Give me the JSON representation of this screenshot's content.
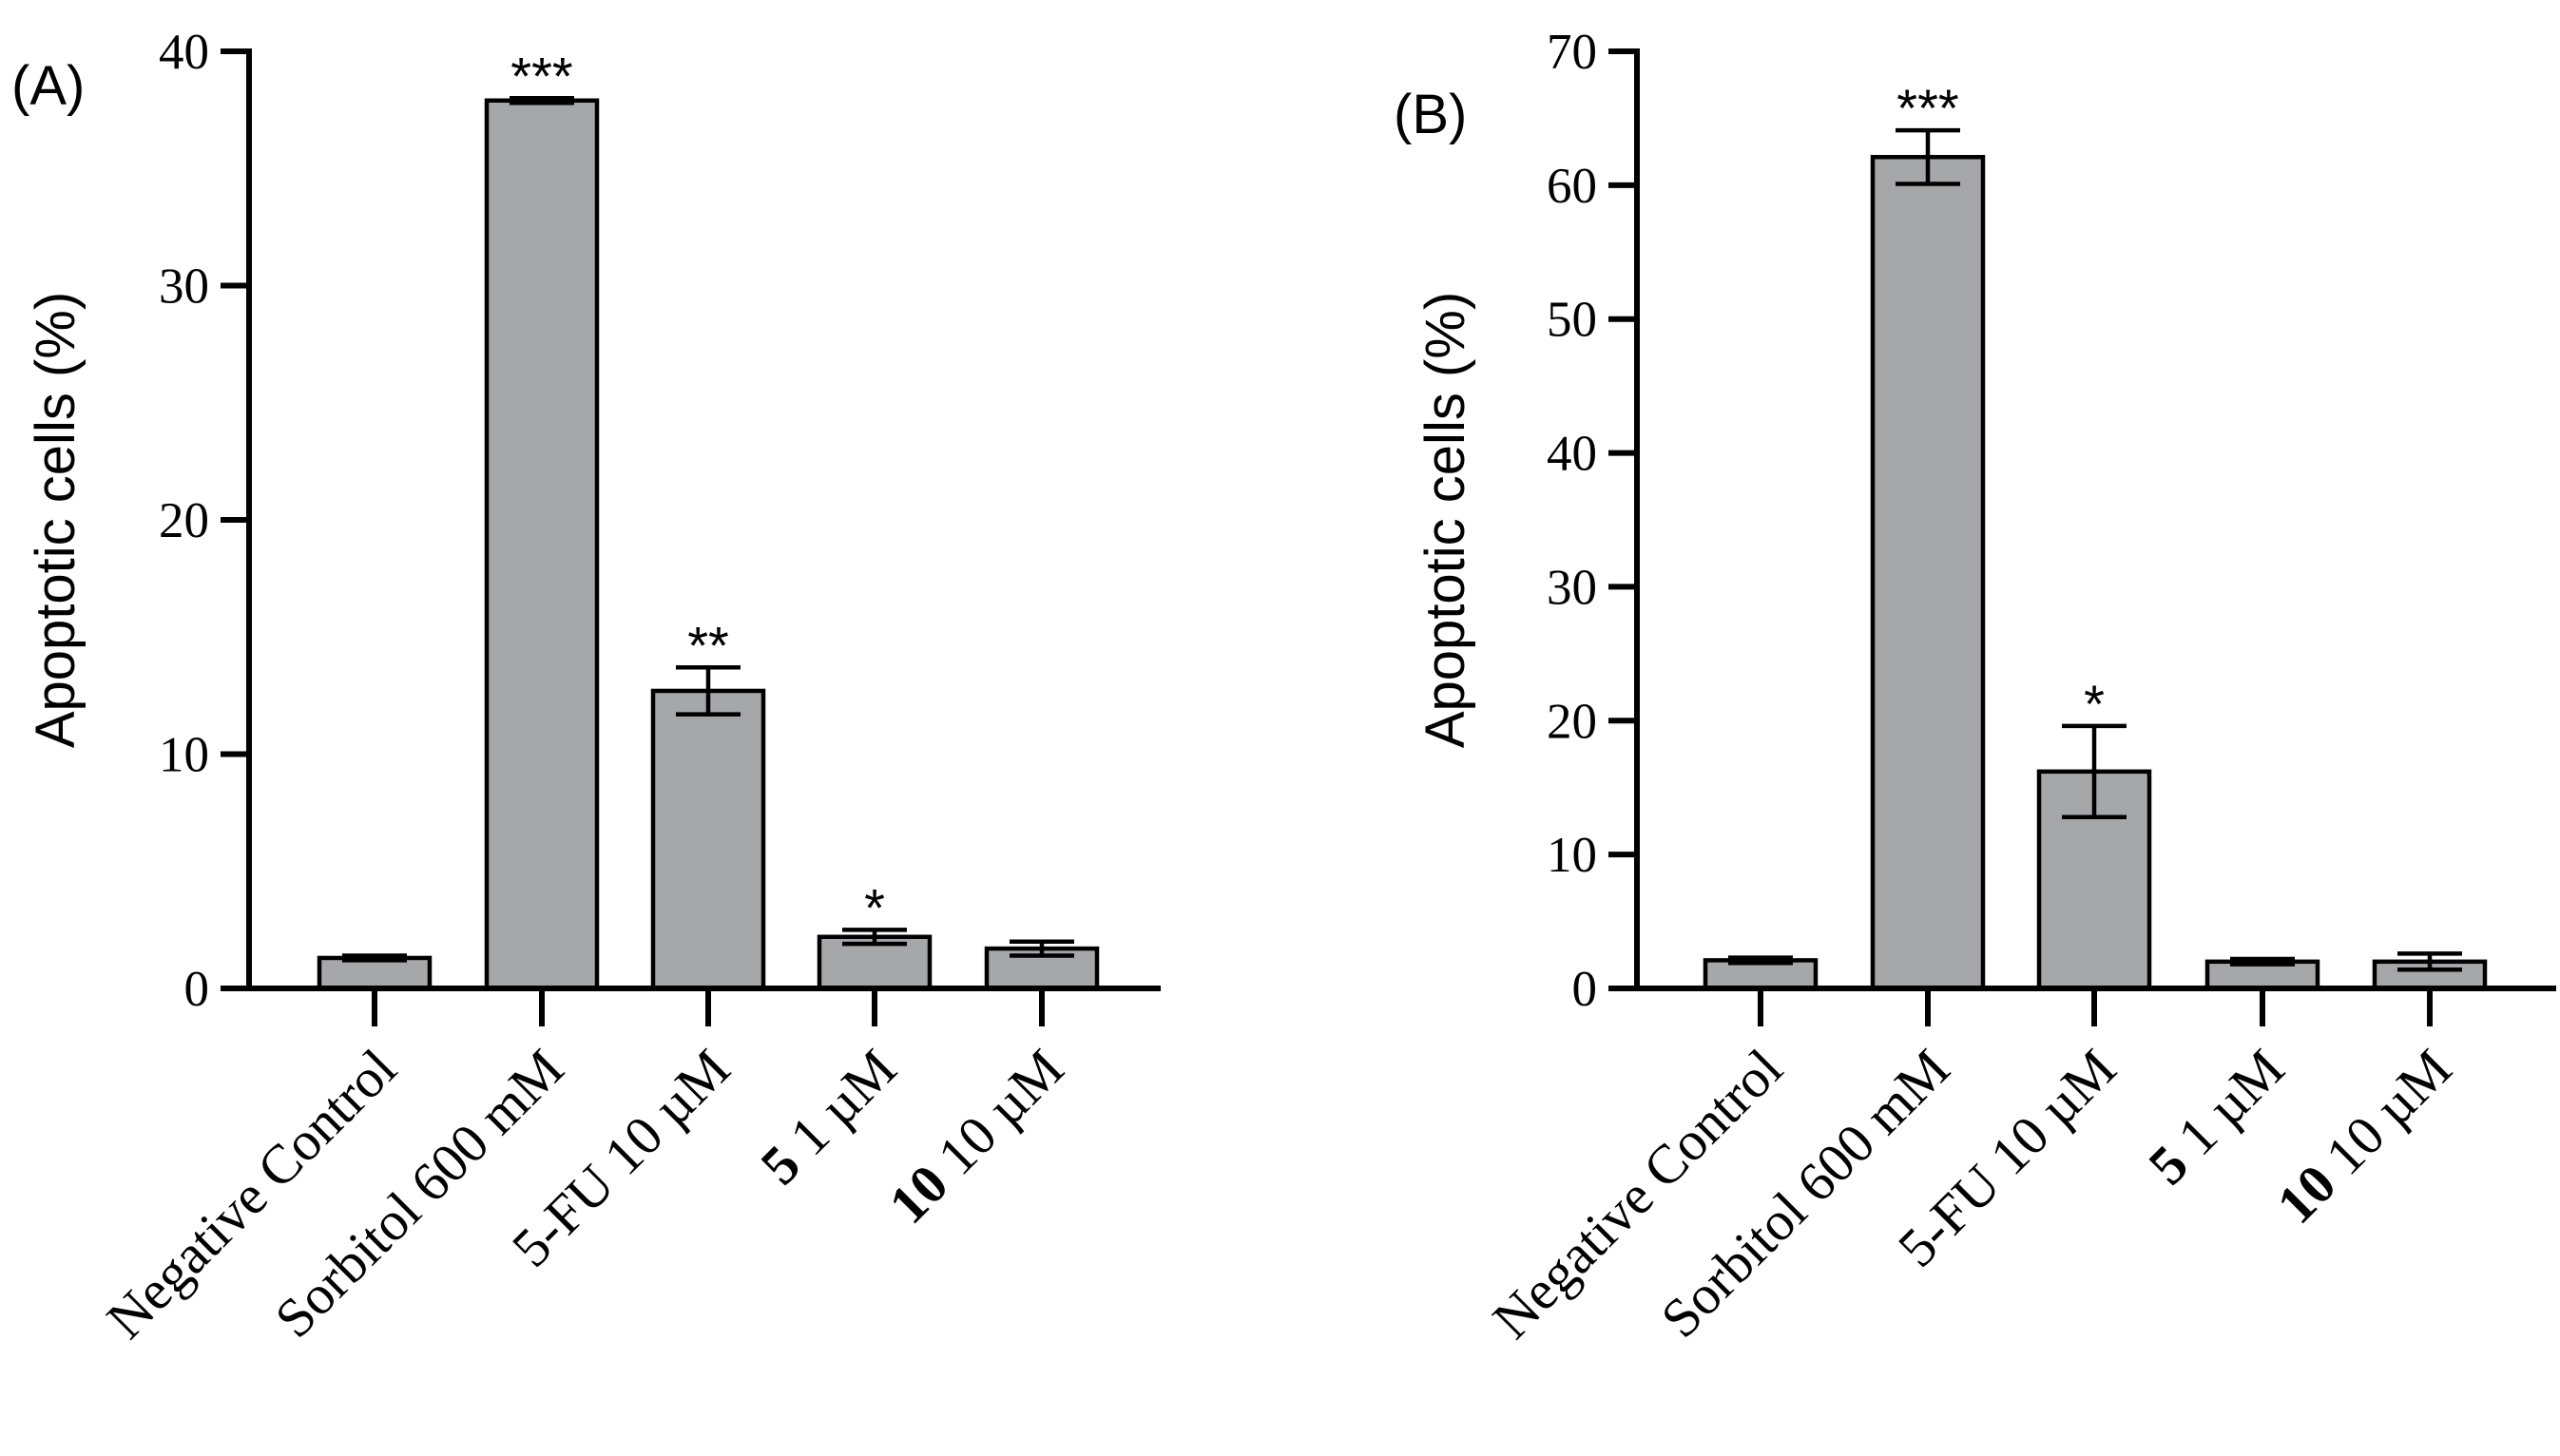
{
  "chart_data": [
    {
      "type": "bar",
      "panel_label": "(A)",
      "ylabel": "Apoptotic cells (%)",
      "ylim": [
        0,
        40
      ],
      "yticks": [
        "0",
        "10",
        "20",
        "30",
        "40"
      ],
      "categories": [
        {
          "bold": "",
          "text": "Negative Control"
        },
        {
          "bold": "",
          "text": "Sorbitol 600 mM"
        },
        {
          "bold": "",
          "text": "5-FU 10 µM"
        },
        {
          "bold": "5",
          "text": " 1 µM"
        },
        {
          "bold": "10",
          "text": " 10 µM"
        }
      ],
      "values": [
        1.3,
        37.9,
        12.7,
        2.2,
        1.7
      ],
      "errors": [
        0.1,
        0.1,
        1.0,
        0.3,
        0.3
      ],
      "significance": [
        "",
        "***",
        "**",
        "*",
        ""
      ],
      "bar_color": "#a6a7a9"
    },
    {
      "type": "bar",
      "panel_label": "(B)",
      "ylabel": "Apoptotic cells (%)",
      "ylim": [
        0,
        70
      ],
      "yticks": [
        "0",
        "10",
        "20",
        "30",
        "40",
        "50",
        "60",
        "70"
      ],
      "categories": [
        {
          "bold": "",
          "text": "Negative Control"
        },
        {
          "bold": "",
          "text": "Sorbitol 600 mM"
        },
        {
          "bold": "",
          "text": "5-FU 10 µM"
        },
        {
          "bold": "5",
          "text": " 1 µM"
        },
        {
          "bold": "10",
          "text": " 10 µM"
        }
      ],
      "values": [
        2.1,
        62.1,
        16.2,
        2.0,
        2.0
      ],
      "errors": [
        0.2,
        2.0,
        3.4,
        0.2,
        0.6
      ],
      "significance": [
        "",
        "***",
        "*",
        "",
        ""
      ],
      "bar_color": "#a6a7a9"
    }
  ]
}
